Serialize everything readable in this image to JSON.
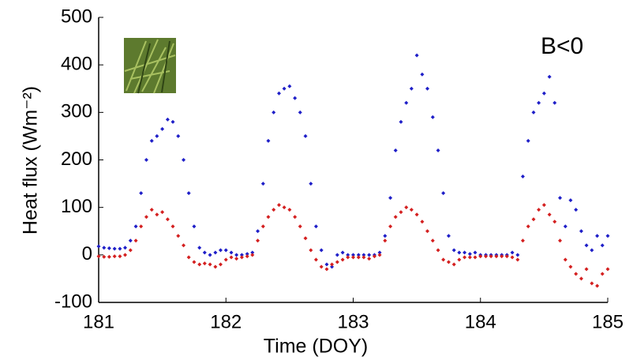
{
  "chart_data": {
    "type": "scatter",
    "x_label": "Time (DOY)",
    "y_label": "Heat flux (Wm⁻²)",
    "annotation": "B<0",
    "xlim": [
      181,
      185
    ],
    "xticks": [
      181,
      182,
      183,
      184,
      185
    ],
    "ylim": [
      -100,
      500
    ],
    "yticks": [
      -100,
      0,
      100,
      200,
      300,
      400,
      500
    ],
    "x": [
      181.0,
      181.042,
      181.083,
      181.125,
      181.167,
      181.208,
      181.25,
      181.292,
      181.333,
      181.375,
      181.417,
      181.458,
      181.5,
      181.542,
      181.583,
      181.625,
      181.667,
      181.708,
      181.75,
      181.792,
      181.833,
      181.875,
      181.917,
      181.958,
      182.0,
      182.042,
      182.083,
      182.125,
      182.167,
      182.208,
      182.25,
      182.292,
      182.333,
      182.375,
      182.417,
      182.458,
      182.5,
      182.542,
      182.583,
      182.625,
      182.667,
      182.708,
      182.75,
      182.792,
      182.833,
      182.875,
      182.917,
      182.958,
      183.0,
      183.042,
      183.083,
      183.125,
      183.167,
      183.208,
      183.25,
      183.292,
      183.333,
      183.375,
      183.417,
      183.458,
      183.5,
      183.542,
      183.583,
      183.625,
      183.667,
      183.708,
      183.75,
      183.792,
      183.833,
      183.875,
      183.917,
      183.958,
      184.0,
      184.042,
      184.083,
      184.125,
      184.167,
      184.208,
      184.25,
      184.292,
      184.333,
      184.375,
      184.417,
      184.458,
      184.5,
      184.542,
      184.583,
      184.625,
      184.667,
      184.708,
      184.75,
      184.792,
      184.833,
      184.875,
      184.917,
      184.958,
      185.0
    ],
    "series": [
      {
        "color": "#1f1fc8",
        "values": [
          18,
          15,
          14,
          13,
          13,
          15,
          30,
          60,
          130,
          200,
          240,
          250,
          265,
          285,
          280,
          250,
          200,
          130,
          60,
          15,
          5,
          0,
          5,
          10,
          10,
          5,
          0,
          0,
          2,
          5,
          50,
          150,
          240,
          300,
          340,
          350,
          355,
          330,
          300,
          250,
          150,
          60,
          10,
          -20,
          -25,
          0,
          5,
          0,
          0,
          0,
          0,
          0,
          0,
          5,
          40,
          120,
          220,
          280,
          320,
          350,
          420,
          380,
          350,
          290,
          220,
          130,
          40,
          10,
          5,
          5,
          2,
          5,
          0,
          0,
          0,
          0,
          0,
          0,
          5,
          0,
          165,
          240,
          300,
          320,
          340,
          375,
          320,
          120,
          60,
          115,
          95,
          50,
          20,
          10,
          40,
          20,
          40
        ]
      },
      {
        "color": "#d42020",
        "values": [
          -3,
          -4,
          -4,
          -3,
          -3,
          0,
          10,
          30,
          60,
          80,
          95,
          85,
          90,
          75,
          60,
          40,
          20,
          -5,
          -15,
          -20,
          -18,
          -20,
          -25,
          -20,
          -10,
          -5,
          -8,
          -5,
          -3,
          0,
          30,
          60,
          80,
          95,
          105,
          100,
          95,
          80,
          60,
          35,
          10,
          -10,
          -25,
          -30,
          -20,
          -15,
          -10,
          -5,
          -5,
          -5,
          -5,
          -8,
          -3,
          0,
          30,
          60,
          80,
          90,
          100,
          95,
          85,
          70,
          50,
          30,
          10,
          -10,
          -15,
          -20,
          -10,
          -5,
          -5,
          -5,
          -3,
          -3,
          -3,
          -3,
          -3,
          -3,
          -5,
          -10,
          30,
          60,
          75,
          95,
          105,
          85,
          70,
          30,
          -10,
          -25,
          -40,
          -50,
          -30,
          -60,
          -65,
          -40,
          -30
        ]
      }
    ]
  }
}
